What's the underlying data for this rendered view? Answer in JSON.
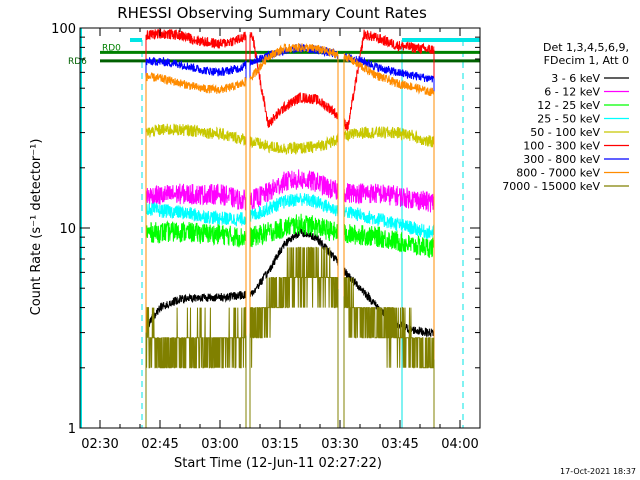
{
  "chart_data": {
    "type": "line",
    "title": "RHESSI Observing Summary Count Rates",
    "xlabel": "Start Time (12-Jun-11 02:27:22)",
    "ylabel": "Count Rate (s⁻¹ detector⁻¹)",
    "y_scale": "log",
    "ylim": [
      1,
      100
    ],
    "xlim_minutes_after_0230": [
      -5,
      95
    ],
    "x_ticks": [
      "02:30",
      "02:45",
      "03:00",
      "03:15",
      "03:30",
      "03:45",
      "04:00"
    ],
    "y_ticks": [
      "1",
      "10",
      "100"
    ],
    "legend_header": [
      "Det 1,3,4,5,6,9,",
      "FDecim 1, Att 0"
    ],
    "legend_placement": "right",
    "grid": false,
    "data_windows_minutes": [
      [
        11.5,
        36.5
      ],
      [
        37.5,
        59.5
      ],
      [
        61.0,
        83.5
      ]
    ],
    "series": [
      {
        "name": "3 - 6 keV",
        "color": "#000000",
        "x": [
          12,
          15,
          20,
          25,
          30,
          35,
          38,
          42,
          46,
          50,
          54,
          58,
          62,
          66,
          70,
          74,
          78,
          82
        ],
        "y": [
          3.3,
          4.0,
          4.4,
          4.5,
          4.5,
          4.6,
          4.7,
          6.0,
          8.3,
          9.6,
          9.0,
          7.3,
          5.8,
          4.8,
          3.9,
          3.3,
          3.1,
          3.0
        ]
      },
      {
        "name": "6 - 12 keV",
        "color": "#ff00ff",
        "x": [
          12,
          15,
          20,
          25,
          30,
          35,
          38,
          42,
          46,
          50,
          54,
          58,
          62,
          66,
          70,
          74,
          78,
          82
        ],
        "y": [
          14.5,
          14.5,
          14.8,
          14.7,
          14.8,
          13.8,
          13.8,
          15.0,
          17.0,
          17.5,
          17.0,
          15.5,
          15.0,
          15.0,
          14.8,
          14.5,
          14.0,
          13.5
        ]
      },
      {
        "name": "12 - 25 keV",
        "color": "#00ff00",
        "x": [
          12,
          15,
          20,
          25,
          30,
          35,
          38,
          42,
          46,
          50,
          54,
          58,
          62,
          66,
          70,
          74,
          78,
          82
        ],
        "y": [
          9.5,
          9.5,
          9.6,
          9.4,
          9.3,
          9.0,
          9.0,
          9.5,
          10.0,
          10.5,
          10.2,
          9.6,
          9.3,
          9.2,
          9.0,
          8.6,
          8.2,
          8.0
        ]
      },
      {
        "name": "25 - 50 keV",
        "color": "#00ffff",
        "x": [
          12,
          15,
          20,
          25,
          30,
          35,
          38,
          42,
          46,
          50,
          54,
          58,
          62,
          66,
          70,
          74,
          78,
          82
        ],
        "y": [
          12.5,
          12.2,
          12.0,
          11.5,
          11.2,
          11.0,
          11.5,
          12.5,
          13.5,
          14.0,
          13.5,
          12.5,
          12.0,
          11.5,
          11.0,
          10.5,
          10.0,
          9.5
        ]
      },
      {
        "name": "50 - 100 keV",
        "color": "#c8c800",
        "x": [
          12,
          15,
          20,
          25,
          30,
          35,
          38,
          42,
          46,
          50,
          54,
          58,
          62,
          66,
          70,
          74,
          78,
          82
        ],
        "y": [
          30,
          31,
          31,
          30.5,
          29.5,
          28,
          27,
          25.5,
          25,
          25,
          25.5,
          27,
          29,
          30,
          30,
          30,
          29,
          27
        ]
      },
      {
        "name": "100 - 300 keV",
        "color": "#ff0000",
        "x": [
          12,
          15,
          20,
          25,
          30,
          35,
          38,
          42,
          46,
          50,
          54,
          58,
          62,
          66,
          70,
          74,
          78,
          82
        ],
        "y": [
          92,
          94,
          92,
          86,
          83,
          88,
          94,
          33,
          40,
          45,
          44,
          39,
          32,
          93,
          88,
          82,
          80,
          78
        ]
      },
      {
        "name": "300 - 800 keV",
        "color": "#0000ff",
        "x": [
          12,
          15,
          20,
          25,
          30,
          35,
          38,
          42,
          46,
          50,
          54,
          58,
          62,
          66,
          70,
          74,
          78,
          82
        ],
        "y": [
          68,
          68,
          66,
          62,
          60,
          63,
          68,
          73,
          77,
          79,
          78,
          75,
          71,
          68,
          63,
          60,
          58,
          56
        ]
      },
      {
        "name": "800 - 7000 keV",
        "color": "#ff8c00",
        "x": [
          12,
          15,
          20,
          25,
          30,
          35,
          38,
          42,
          46,
          50,
          54,
          58,
          62,
          66,
          70,
          74,
          78,
          82
        ],
        "y": [
          57,
          56,
          53,
          50,
          49,
          52,
          57,
          72,
          79,
          80,
          79,
          75,
          71,
          63,
          57,
          53,
          51,
          48
        ]
      },
      {
        "name": "7000 - 15000 keV",
        "color": "#808000",
        "x": [
          12,
          15,
          20,
          25,
          30,
          35,
          38,
          42,
          46,
          50,
          54,
          58,
          62,
          66,
          70,
          74,
          78,
          82
        ],
        "y": [
          3.0,
          2.3,
          2.6,
          2.6,
          2.6,
          2.8,
          3.0,
          4.0,
          5.0,
          6.0,
          6.2,
          5.4,
          4.3,
          3.6,
          3.3,
          2.9,
          2.6,
          2.2
        ]
      }
    ],
    "annotations": [
      {
        "text": "RD0",
        "color": "#008000",
        "y": 75.5
      },
      {
        "text": "RD6",
        "color": "#006000",
        "y": 68.5
      }
    ],
    "timestamp": "17-Oct-2021 18:37"
  }
}
